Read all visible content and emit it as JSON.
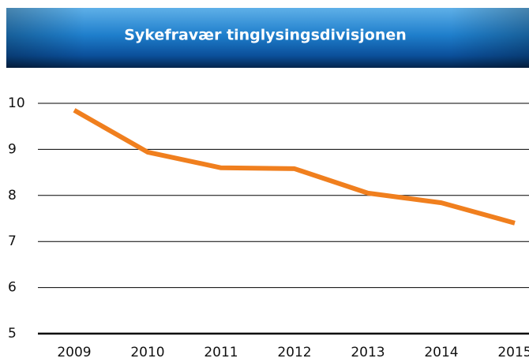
{
  "chart_data": {
    "type": "line",
    "title": "Sykefravær tinglysingsdivisjonen",
    "categories": [
      "2009",
      "2010",
      "2011",
      "2012",
      "2013",
      "2014",
      "2015"
    ],
    "series": [
      {
        "name": "Sykefravær",
        "color": "#f07f1e",
        "values": [
          9.85,
          8.94,
          8.6,
          8.58,
          8.05,
          7.84,
          7.4
        ]
      }
    ],
    "ylim": [
      5,
      10
    ],
    "yticks": [
      5,
      6,
      7,
      8,
      9,
      10
    ],
    "grid": true
  }
}
